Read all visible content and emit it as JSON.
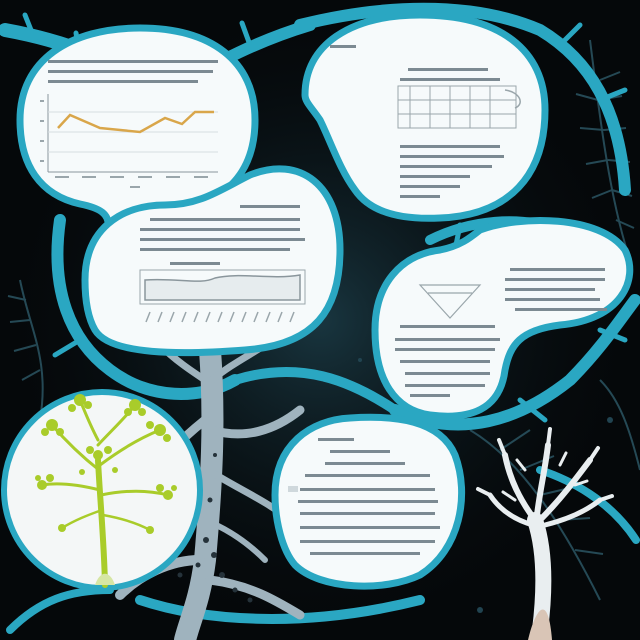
{
  "palette": {
    "background": "#05080a",
    "teal": "#2aa7c2",
    "teal_dark": "#17677b",
    "bubble": "#f6fafb",
    "branch": "#9fb3be",
    "coral_white": "#e9eef0",
    "lime": "#a9cc2a",
    "line_chart": "#d9a64a",
    "text_grey": "#6d7a82"
  },
  "scene": {
    "bubbles": [
      {
        "id": "bubble-top-left",
        "content": "line-chart"
      },
      {
        "id": "bubble-top-right",
        "content": "table-chart"
      },
      {
        "id": "bubble-middle-left",
        "content": "area-chart"
      },
      {
        "id": "bubble-middle-right",
        "content": "text-diagram"
      },
      {
        "id": "bubble-bottom-center",
        "content": "text"
      },
      {
        "id": "bubble-bottom-left",
        "content": "plant-photo"
      }
    ],
    "decorations": [
      "tree-trunk",
      "white-coral",
      "teal-branches",
      "dark-ferns"
    ]
  }
}
